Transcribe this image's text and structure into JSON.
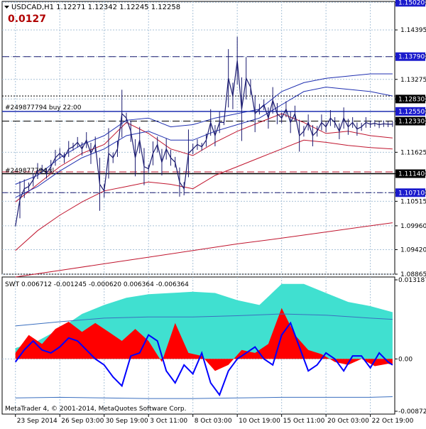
{
  "header": {
    "symbol_line": "USDCAD,H1  1.12271 1.12342 1.12245 1.12258",
    "big_value": "0.0127"
  },
  "colors": {
    "background": "#ffffff",
    "grid": "#a9c2d8",
    "axis": "#000000",
    "price_line": "#1a1a70",
    "band_red": "#c0152e",
    "band_blue": "#1f2fb0",
    "swt_cyan": "#40e0d0",
    "swt_red": "#ff0000",
    "swt_blue": "#0000ff",
    "swt_line": "#3a6fbf",
    "label_blue_bg": "#1a1acc",
    "big_value": "#b00000"
  },
  "order_labels": {
    "buy": "#249877794 buy 22:00",
    "sl": "#249877794 sl"
  },
  "indicator": {
    "label": "SWT 0.006712 -0.001245 -0.000620 0.006364 -0.006364"
  },
  "copyright": "MetaTrader 4, © 2001-2014, MetaQuotes Software Corp.",
  "chart_data": [
    {
      "type": "line",
      "name": "price",
      "symbol": "USDCAD",
      "timeframe": "H1",
      "ohlc": {
        "open": 1.12271,
        "high": 1.12342,
        "low": 1.12245,
        "close": 1.12258
      },
      "ylim": [
        1.08865,
        1.1504
      ],
      "y_ticks": [
        1.1502,
        1.14395,
        1.1379,
        1.13275,
        1.1283,
        1.1255,
        1.1233,
        1.11625,
        1.1114,
        1.1071,
        1.10515,
        1.0996,
        1.0942,
        1.08865
      ],
      "y_tick_labels": [
        "1.15020",
        "1.14395",
        "1.13790",
        "1.13275",
        "1.12830",
        "1.12550",
        "1.12330",
        "1.11625",
        "1.11140",
        "1.10710",
        "1.10515",
        "1.09960",
        "1.09420",
        "1.08865"
      ],
      "highlighted_levels": [
        {
          "value": 1.1502,
          "label": "1.15020",
          "style": "blue-box"
        },
        {
          "value": 1.1379,
          "label": "1.13790",
          "style": "blue-box"
        },
        {
          "value": 1.1283,
          "label": "1.12830",
          "style": "black-box"
        },
        {
          "value": 1.1255,
          "label": "1.12550",
          "style": "blue-box"
        },
        {
          "value": 1.1233,
          "label": "1.12330",
          "style": "black-box"
        },
        {
          "value": 1.1114,
          "label": "1.11140",
          "style": "black-box"
        },
        {
          "value": 1.1071,
          "label": "1.10710",
          "style": "blue-box"
        }
      ],
      "horizontal_lines": [
        {
          "value": 1.1379,
          "style": "dashed",
          "color": "#1a1a70"
        },
        {
          "value": 1.129,
          "style": "dotted",
          "color": "#000000"
        },
        {
          "value": 1.1255,
          "style": "solid",
          "color": "#1f2fb0"
        },
        {
          "value": 1.1233,
          "style": "dashed",
          "color": "#000000"
        },
        {
          "value": 1.1118,
          "style": "dashed",
          "color": "#c0152e"
        },
        {
          "value": 1.1114,
          "style": "solid",
          "color": "#000000"
        },
        {
          "value": 1.1071,
          "style": "dashdot",
          "color": "#1a1a70"
        }
      ],
      "x_labels": [
        "23 Sep 2014",
        "26 Sep 03:00",
        "30 Sep 19:00",
        "3 Oct 11:00",
        "8 Oct 03:00",
        "10 Oct 19:00",
        "15 Oct 11:00",
        "20 Oct 03:00",
        "22 Oct 19:00"
      ],
      "x_tick_index": [
        0,
        1,
        2,
        3,
        4,
        5,
        6,
        7,
        8
      ],
      "series": [
        {
          "role": "close",
          "x": [
            0,
            0.1,
            0.2,
            0.3,
            0.4,
            0.5,
            0.6,
            0.7,
            0.8,
            0.9,
            1,
            1.1,
            1.2,
            1.3,
            1.4,
            1.5,
            1.6,
            1.7,
            1.8,
            1.9,
            2,
            2.1,
            2.2,
            2.3,
            2.4,
            2.5,
            2.6,
            2.7,
            2.8,
            2.9,
            3,
            3.1,
            3.2,
            3.3,
            3.4,
            3.5,
            3.6,
            3.7,
            3.8,
            3.9,
            4,
            4.1,
            4.2,
            4.3,
            4.4,
            4.5,
            4.6,
            4.7,
            4.8,
            4.9,
            5,
            5.1,
            5.2,
            5.3,
            5.4,
            5.5,
            5.6,
            5.7,
            5.8,
            5.9,
            6,
            6.1,
            6.2,
            6.3,
            6.4,
            6.5,
            6.6,
            6.7,
            6.8,
            6.9,
            7,
            7.1,
            7.2,
            7.3,
            7.4,
            7.5,
            7.6,
            7.7,
            7.8,
            7.9,
            8,
            8.1,
            8.2,
            8.3,
            8.4,
            8.5
          ],
          "y": [
            1.0995,
            1.1055,
            1.108,
            1.1085,
            1.11,
            1.112,
            1.1125,
            1.1115,
            1.113,
            1.115,
            1.116,
            1.115,
            1.117,
            1.1175,
            1.1185,
            1.117,
            1.119,
            1.116,
            1.118,
            1.109,
            1.1075,
            1.116,
            1.115,
            1.117,
            1.125,
            1.124,
            1.121,
            1.115,
            1.119,
            1.113,
            1.1125,
            1.116,
            1.118,
            1.114,
            1.117,
            1.115,
            1.114,
            1.1095,
            1.108,
            1.116,
            1.117,
            1.118,
            1.1175,
            1.119,
            1.123,
            1.12,
            1.123,
            1.123,
            1.133,
            1.129,
            1.137,
            1.126,
            1.133,
            1.131,
            1.125,
            1.126,
            1.127,
            1.124,
            1.128,
            1.125,
            1.124,
            1.126,
            1.123,
            1.125,
            1.12,
            1.121,
            1.123,
            1.12,
            1.121,
            1.123,
            1.122,
            1.124,
            1.123,
            1.121,
            1.124,
            1.122,
            1.123,
            1.1215,
            1.122,
            1.123,
            1.1226,
            1.1228,
            1.1225,
            1.1227,
            1.1226,
            1.1226
          ]
        },
        {
          "role": "red_band_lower",
          "x": [
            0,
            0.5,
            1,
            1.5,
            2,
            2.5,
            3,
            3.5,
            4,
            4.5,
            5,
            5.5,
            6,
            6.5,
            7,
            7.5,
            8,
            8.5
          ],
          "y": [
            1.094,
            1.0985,
            1.102,
            1.105,
            1.1075,
            1.1085,
            1.1095,
            1.109,
            1.108,
            1.111,
            1.113,
            1.115,
            1.117,
            1.119,
            1.1185,
            1.1178,
            1.1173,
            1.117
          ]
        },
        {
          "role": "red_band_upper",
          "x": [
            0,
            0.5,
            1,
            1.5,
            2,
            2.5,
            3,
            3.5,
            4,
            4.5,
            5,
            5.5,
            6,
            6.5,
            7,
            7.5,
            8,
            8.5
          ],
          "y": [
            1.105,
            1.109,
            1.113,
            1.116,
            1.118,
            1.123,
            1.1205,
            1.117,
            1.1155,
            1.1185,
            1.121,
            1.123,
            1.125,
            1.123,
            1.1205,
            1.121,
            1.12,
            1.1195
          ]
        },
        {
          "role": "long_ma",
          "x": [
            0,
            1,
            2,
            3,
            4,
            5,
            6,
            7,
            8,
            8.5
          ],
          "y": [
            1.088,
            1.0895,
            1.091,
            1.0925,
            1.094,
            1.0955,
            1.0968,
            1.0982,
            1.0996,
            1.1003
          ]
        },
        {
          "role": "blue_band_upper",
          "x": [
            0,
            0.5,
            1,
            1.5,
            2,
            2.5,
            3,
            3.5,
            4,
            4.5,
            5,
            5.5,
            6,
            6.5,
            7,
            7.5,
            8,
            8.5
          ],
          "y": [
            1.109,
            1.111,
            1.115,
            1.118,
            1.12,
            1.1235,
            1.124,
            1.122,
            1.1225,
            1.124,
            1.125,
            1.126,
            1.13,
            1.132,
            1.133,
            1.1335,
            1.134,
            1.134
          ]
        },
        {
          "role": "blue_band_mid",
          "x": [
            0,
            0.5,
            1,
            1.5,
            2,
            2.5,
            3,
            3.5,
            4,
            4.5,
            5,
            5.5,
            6,
            6.5,
            7,
            7.5,
            8,
            8.5
          ],
          "y": [
            1.106,
            1.1085,
            1.112,
            1.115,
            1.117,
            1.12,
            1.121,
            1.119,
            1.119,
            1.121,
            1.1225,
            1.124,
            1.127,
            1.13,
            1.131,
            1.1305,
            1.13,
            1.129
          ]
        }
      ]
    },
    {
      "type": "area",
      "name": "SWT",
      "ylim": [
        -0.008725,
        0.013187
      ],
      "y_tick_labels": [
        "0.013187",
        "0.00",
        "-0.008725"
      ],
      "zero_level": 0,
      "series": [
        {
          "role": "cyan_area",
          "x": [
            0,
            0.5,
            1,
            1.5,
            2,
            2.5,
            3,
            3.5,
            4,
            4.5,
            5,
            5.5,
            6,
            6.5,
            7,
            7.5,
            8,
            8.5
          ],
          "y": [
            0.0018,
            0.003,
            0.005,
            0.0075,
            0.009,
            0.0102,
            0.0108,
            0.011,
            0.0112,
            0.011,
            0.0098,
            0.009,
            0.0125,
            0.0125,
            0.011,
            0.0095,
            0.0088,
            0.0078
          ]
        },
        {
          "role": "red_area",
          "x": [
            0,
            0.3,
            0.6,
            0.9,
            1.2,
            1.5,
            1.8,
            2.1,
            2.4,
            2.7,
            3.0,
            3.3,
            3.6,
            3.9,
            4.2,
            4.5,
            4.8,
            5.1,
            5.4,
            5.7,
            6.0,
            6.3,
            6.6,
            6.9,
            7.2,
            7.5,
            7.8,
            8.1,
            8.4,
            8.5
          ],
          "y": [
            0.001,
            0.004,
            0.0025,
            0.005,
            0.0062,
            0.0045,
            0.006,
            0.0045,
            0.003,
            0.005,
            0.003,
            -0.0005,
            0.006,
            0.001,
            0.0005,
            -0.002,
            -0.001,
            0.0015,
            0.001,
            0.0025,
            0.0085,
            0.004,
            0.0015,
            0.0008,
            -0.0005,
            -0.001,
            0.0,
            -0.0012,
            -0.0008,
            -0.001
          ]
        },
        {
          "role": "blue_line",
          "x": [
            0,
            0.2,
            0.4,
            0.6,
            0.8,
            1.0,
            1.2,
            1.4,
            1.6,
            1.8,
            2.0,
            2.2,
            2.4,
            2.6,
            2.8,
            3.0,
            3.2,
            3.4,
            3.6,
            3.8,
            4.0,
            4.2,
            4.4,
            4.6,
            4.8,
            5.0,
            5.2,
            5.4,
            5.6,
            5.8,
            6.0,
            6.2,
            6.4,
            6.6,
            6.8,
            7.0,
            7.2,
            7.4,
            7.6,
            7.8,
            8.0,
            8.2,
            8.4,
            8.5
          ],
          "y": [
            -0.0005,
            0.0015,
            0.003,
            0.0015,
            0.001,
            0.002,
            0.0035,
            0.003,
            0.0015,
            0.0,
            -0.001,
            -0.003,
            -0.0045,
            0.0005,
            0.001,
            0.004,
            0.003,
            -0.002,
            -0.004,
            -0.001,
            -0.0025,
            0.001,
            -0.004,
            -0.006,
            -0.002,
            0.0,
            0.001,
            0.002,
            0.0,
            -0.001,
            0.004,
            0.006,
            0.002,
            -0.002,
            -0.001,
            0.001,
            0.0,
            -0.002,
            0.0005,
            0.0005,
            -0.0015,
            0.001,
            -0.0005,
            -0.001
          ]
        },
        {
          "role": "signal_line",
          "x": [
            0,
            1,
            2,
            3,
            4,
            5,
            6,
            7,
            8,
            8.5
          ],
          "y": [
            0.0055,
            0.0062,
            0.0068,
            0.007,
            0.007,
            0.0072,
            0.0075,
            0.0073,
            0.0068,
            0.0066
          ]
        },
        {
          "role": "lower_line",
          "x": [
            0,
            1,
            2,
            3,
            4,
            5,
            6,
            7,
            8,
            8.5
          ],
          "y": [
            -0.0065,
            -0.0064,
            -0.0065,
            -0.0066,
            -0.0066,
            -0.0065,
            -0.0064,
            -0.0064,
            -0.0064,
            -0.0063
          ]
        }
      ]
    }
  ]
}
